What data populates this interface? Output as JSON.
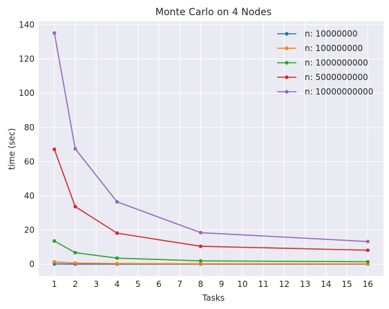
{
  "chart_data": {
    "type": "line",
    "title": "Monte Carlo on 4 Nodes",
    "xlabel": "Tasks",
    "ylabel": "time (sec)",
    "x_ticks": [
      1,
      2,
      3,
      4,
      5,
      6,
      7,
      8,
      9,
      10,
      11,
      12,
      13,
      14,
      15,
      16
    ],
    "y_ticks": [
      0,
      20,
      40,
      60,
      80,
      100,
      120,
      140
    ],
    "xlim": [
      0.25,
      16.75
    ],
    "ylim": [
      -6.8,
      142
    ],
    "grid": true,
    "legend_position": "top-right",
    "x": [
      1,
      2,
      4,
      8,
      16
    ],
    "series": [
      {
        "name": "n: 10000000",
        "color": "#1f77b4",
        "values": [
          0.2,
          0.1,
          0.1,
          0.1,
          0.1
        ]
      },
      {
        "name": "n: 100000000",
        "color": "#ff7f0e",
        "values": [
          1.4,
          0.7,
          0.4,
          0.3,
          0.2
        ]
      },
      {
        "name": "n: 1000000000",
        "color": "#2ca02c",
        "values": [
          13.6,
          6.8,
          3.6,
          2.0,
          1.5
        ]
      },
      {
        "name": "n: 5000000000",
        "color": "#d62728",
        "values": [
          67.2,
          33.7,
          18.2,
          10.5,
          8.2
        ]
      },
      {
        "name": "n: 10000000000",
        "color": "#9467bd",
        "values": [
          135.2,
          67.5,
          36.5,
          18.5,
          13.3
        ]
      }
    ]
  }
}
